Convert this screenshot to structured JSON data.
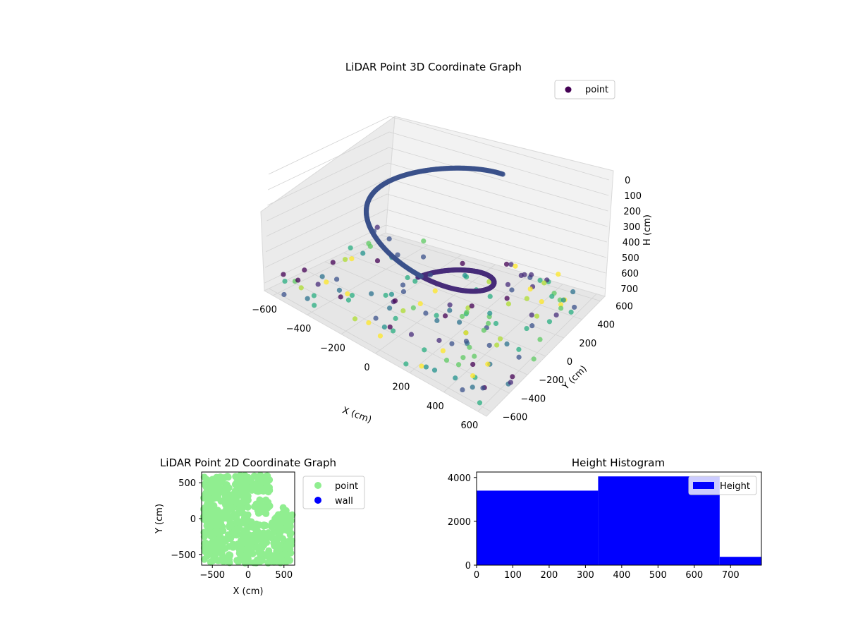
{
  "colors": {
    "viridis_dark": "#440154",
    "viridis_blue": "#3b528b",
    "viridis_teal": "#21918c",
    "viridis_green": "#5ec962",
    "viridis_yellow": "#fde725",
    "point_2d": "#90ee90",
    "wall_2d": "#0000ff",
    "histogram_bar": "#0000ff"
  },
  "chart_data": [
    {
      "type": "scatter3d",
      "title": "LiDAR Point 3D Coordinate Graph",
      "xlabel": "X (cm)",
      "ylabel": "Y (cm)",
      "zlabel": "H (cm)",
      "xticks": [
        "−600",
        "−400",
        "−200",
        "0",
        "200",
        "400",
        "600"
      ],
      "yticks": [
        "−600",
        "−400",
        "−200",
        "0",
        "200",
        "400",
        "600"
      ],
      "zticks": [
        "0",
        "100",
        "200",
        "300",
        "400",
        "500",
        "600",
        "700"
      ],
      "xlim": [
        -650,
        650
      ],
      "ylim": [
        -650,
        650
      ],
      "zlim": [
        0,
        750
      ],
      "z_inverted": true,
      "colormap": "viridis",
      "legend": [
        {
          "label": "point",
          "color": "#440154"
        }
      ],
      "legend_position": "upper-right",
      "grid": true,
      "description_series": [
        {
          "name": "spiral wall",
          "shape": "helix",
          "radius": 400,
          "z_range": [
            0,
            700
          ]
        },
        {
          "name": "scattered points",
          "shape": "random"
        }
      ]
    },
    {
      "type": "scatter",
      "title": "LiDAR Point 2D Coordinate Graph",
      "xlabel": "X (cm)",
      "ylabel": "Y (cm)",
      "xticks": [
        -500,
        0,
        500
      ],
      "yticks": [
        -500,
        0,
        500
      ],
      "xlim": [
        -650,
        650
      ],
      "ylim": [
        -650,
        650
      ],
      "legend": [
        {
          "label": "point",
          "color": "#90ee90"
        },
        {
          "label": "wall",
          "color": "#0000ff"
        }
      ],
      "legend_position": "outside-right"
    },
    {
      "type": "bar",
      "title": "Height Histogram",
      "legend": [
        {
          "label": "Height",
          "color": "#0000ff"
        }
      ],
      "legend_position": "upper-right",
      "xticks": [
        0,
        100,
        200,
        300,
        400,
        500,
        600,
        700
      ],
      "yticks": [
        0,
        2000,
        4000
      ],
      "xlim": [
        0,
        785
      ],
      "ylim": [
        0,
        4250
      ],
      "bins": [
        {
          "x0": 0,
          "x1": 335,
          "count": 3400
        },
        {
          "x0": 335,
          "x1": 670,
          "count": 4050
        },
        {
          "x0": 670,
          "x1": 785,
          "count": 380
        }
      ]
    }
  ]
}
